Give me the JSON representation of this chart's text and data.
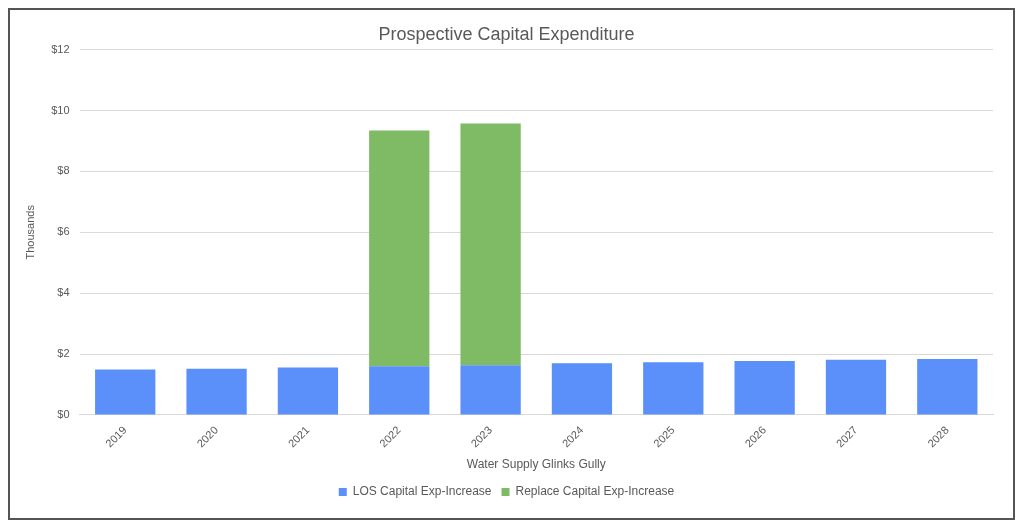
{
  "chart_data": {
    "type": "bar",
    "title": "Prospective Capital Expenditure",
    "xlabel": "Water Supply Glinks Gully",
    "ylabel": "Thousands",
    "categories": [
      "2019",
      "2020",
      "2021",
      "2022",
      "2023",
      "2024",
      "2025",
      "2026",
      "2027",
      "2028"
    ],
    "series": [
      {
        "name": "LOS Capital Exp-Increase",
        "color": "#5b8ff9",
        "values": [
          1.49,
          1.52,
          1.56,
          1.6,
          1.63,
          1.7,
          1.73,
          1.77,
          1.81,
          1.84
        ]
      },
      {
        "name": "Replace Capital Exp-Increase",
        "color": "#7fba64",
        "values": [
          null,
          null,
          null,
          7.74,
          7.94,
          null,
          null,
          null,
          null,
          null
        ]
      }
    ],
    "stacked": true,
    "ylim": [
      0,
      12
    ],
    "yticks": [
      {
        "value": 0,
        "label": "$0"
      },
      {
        "value": 2,
        "label": "$2"
      },
      {
        "value": 4,
        "label": "$4"
      },
      {
        "value": 6,
        "label": "$6"
      },
      {
        "value": 8,
        "label": "$8"
      },
      {
        "value": 10,
        "label": "$10"
      },
      {
        "value": 12,
        "label": "$12"
      }
    ],
    "grid": "y",
    "legend": "bottom"
  }
}
